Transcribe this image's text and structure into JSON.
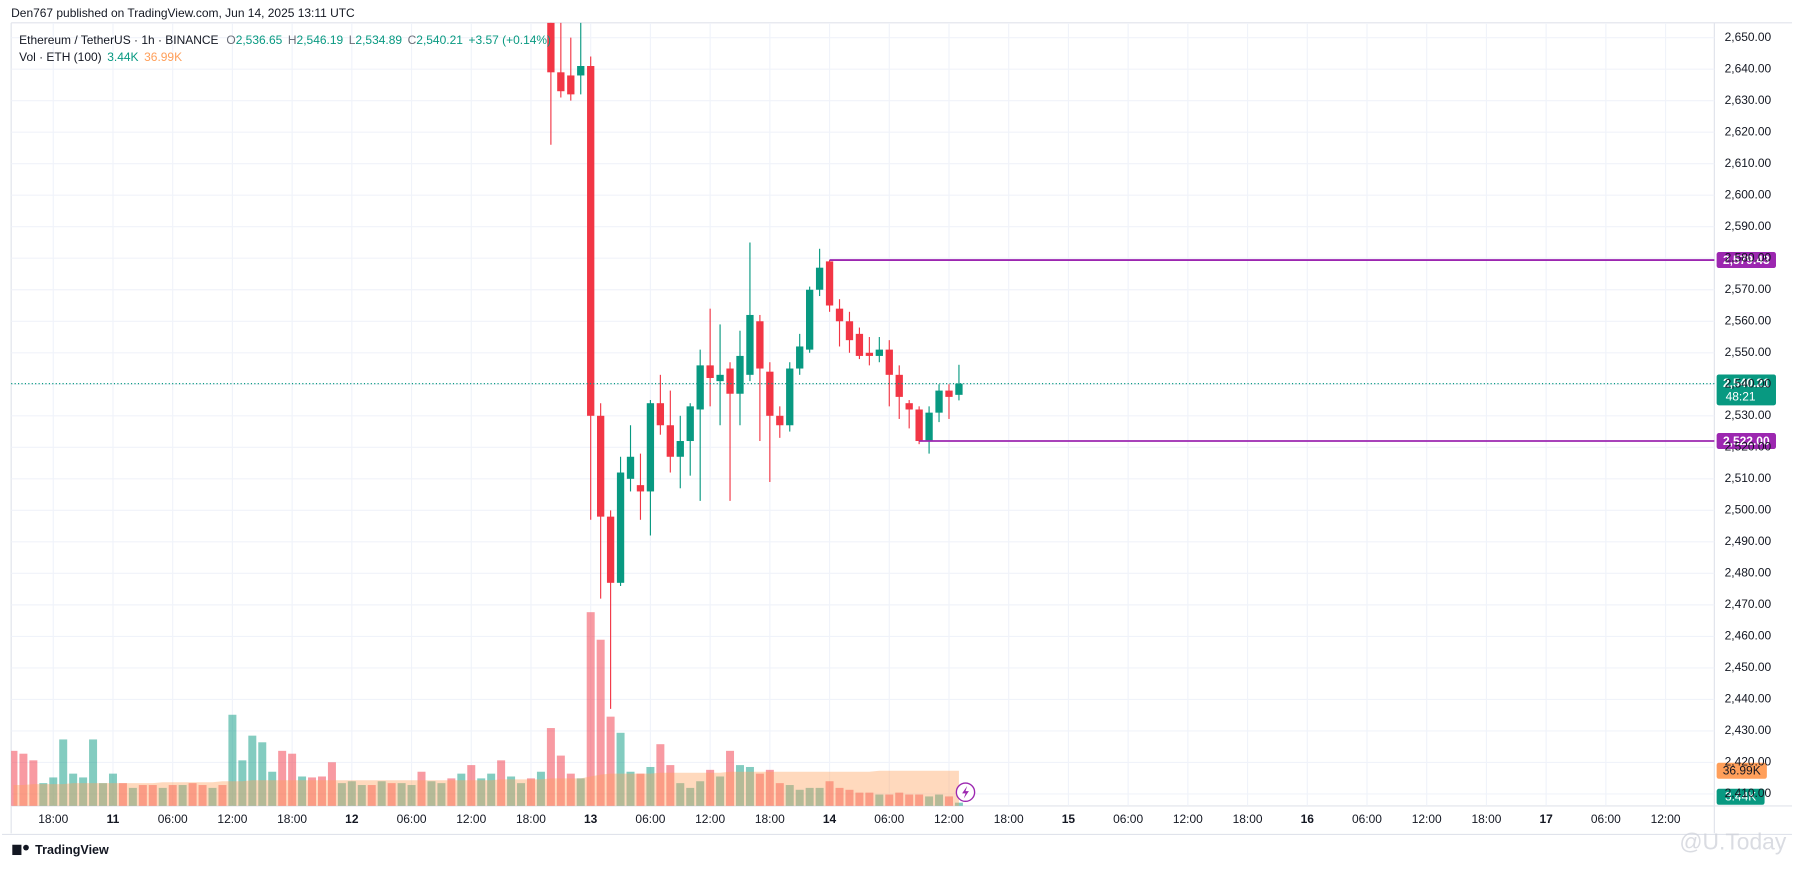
{
  "chart_data": {
    "type": "candlestick",
    "publisher_line": "Den767 published on TradingView.com, Jun 14, 2025 13:11 UTC",
    "symbol": "Ethereum / TetherUS · 1h · BINANCE",
    "ohlc": [
      {
        "prefix": "O",
        "value": "2,536.65"
      },
      {
        "prefix": "H",
        "value": "2,546.19"
      },
      {
        "prefix": "L",
        "value": "2,534.89"
      },
      {
        "prefix": "C",
        "value": "2,540.21"
      }
    ],
    "change": "+3.57 (+0.14%)",
    "volume_legend": "Vol · ETH (100)",
    "volume_last": {
      "value": 3.44,
      "label": "3.44K"
    },
    "volume_ma_last": {
      "value": 36.99,
      "label": "36.99K"
    },
    "up_color": "#089981",
    "down_color": "#f23645",
    "ma_color": "#ff9f5a",
    "level_color": "#9c27b0",
    "x": [
      54,
      55,
      56,
      57,
      58,
      59,
      60,
      61,
      62,
      63,
      64,
      65,
      66,
      67,
      68,
      69,
      70,
      71,
      72,
      73,
      74,
      75,
      76,
      77,
      78,
      79,
      80,
      81,
      82,
      83,
      84,
      85,
      86,
      87,
      88,
      89,
      90,
      91,
      92,
      93,
      94,
      95
    ],
    "open": [
      2660,
      2639,
      2638,
      2638,
      2641,
      2530,
      2498,
      2477,
      2510,
      2508,
      2506,
      2534,
      2527,
      2517,
      2522,
      2532,
      2546,
      2541,
      2545,
      2537,
      2543,
      2560,
      2544,
      2530,
      2527,
      2545,
      2551,
      2570,
      2579,
      2564,
      2560,
      2556,
      2550,
      2549,
      2551,
      2543,
      2534,
      2532,
      2522,
      2531,
      2538,
      2536.65
    ],
    "high": [
      2665,
      2655,
      2650,
      2655,
      2644,
      2534,
      2500,
      2517,
      2527,
      2518,
      2535,
      2543,
      2538,
      2530,
      2534,
      2551,
      2564,
      2559,
      2547,
      2557,
      2585,
      2562,
      2547,
      2533,
      2547,
      2556,
      2571,
      2583,
      2579.43,
      2567,
      2563,
      2558,
      2555,
      2555,
      2554,
      2546,
      2535,
      2533,
      2533,
      2540,
      2540,
      2546.19
    ],
    "low": [
      2616,
      2631,
      2630,
      2632,
      2497,
      2472,
      2437,
      2476,
      2506,
      2497,
      2492,
      2524,
      2512,
      2507,
      2511,
      2503,
      2533,
      2527,
      2503,
      2527,
      2541,
      2522,
      2509,
      2523,
      2525,
      2543,
      2550,
      2568,
      2563,
      2552,
      2550,
      2548,
      2546,
      2547,
      2533,
      2529,
      2526,
      2521,
      2518,
      2528,
      2529,
      2534.89
    ],
    "close": [
      2639,
      2633,
      2632,
      2641,
      2530,
      2498,
      2477,
      2512,
      2517,
      2506,
      2534,
      2527,
      2517,
      2522,
      2533,
      2546,
      2542,
      2543,
      2537,
      2549,
      2562,
      2545,
      2530,
      2527,
      2545,
      2552,
      2570,
      2577,
      2565,
      2560,
      2554,
      2549,
      2549,
      2551,
      2543,
      2536,
      2532,
      2522,
      2531,
      2538,
      2536,
      2540.21
    ],
    "volume": {
      "x": [
        0,
        1,
        2,
        3,
        4,
        5,
        6,
        7,
        8,
        9,
        10,
        11,
        12,
        13,
        14,
        15,
        16,
        17,
        18,
        19,
        20,
        21,
        22,
        23,
        24,
        25,
        26,
        27,
        28,
        29,
        30,
        31,
        32,
        33,
        34,
        35,
        36,
        37,
        38,
        39,
        40,
        41,
        42,
        43,
        44,
        45,
        46,
        47,
        48,
        49,
        50,
        51,
        52,
        53,
        54,
        55,
        56,
        57,
        58,
        59,
        60,
        61,
        62,
        63,
        64,
        65,
        66,
        67,
        68,
        69,
        70,
        71,
        72,
        73,
        74,
        75,
        76,
        77,
        78,
        79,
        80,
        81,
        82,
        83,
        84,
        85,
        86,
        87,
        88,
        89,
        90,
        91,
        92,
        93,
        94,
        95
      ],
      "values": [
        58,
        55,
        48,
        24,
        30,
        70,
        34,
        30,
        70,
        24,
        34,
        24,
        19,
        22,
        22,
        19,
        22,
        22,
        24,
        22,
        19,
        22,
        96,
        48,
        74,
        67,
        36,
        58,
        55,
        31,
        30,
        31,
        46,
        24,
        26,
        22,
        22,
        26,
        24,
        24,
        22,
        36,
        26,
        24,
        29,
        34,
        43,
        29,
        34,
        48,
        31,
        24,
        29,
        36,
        82,
        53,
        34,
        29,
        204,
        175,
        94,
        77,
        36,
        34,
        41,
        65,
        43,
        24,
        19,
        26,
        38,
        31,
        58,
        43,
        41,
        34,
        38,
        24,
        22,
        17,
        19,
        19,
        26,
        19,
        17,
        14,
        14,
        12,
        12,
        14,
        12,
        12,
        10,
        12,
        10,
        3.44
      ],
      "up": [
        false,
        false,
        false,
        true,
        true,
        true,
        true,
        true,
        true,
        true,
        true,
        false,
        true,
        false,
        false,
        true,
        false,
        true,
        false,
        false,
        true,
        false,
        true,
        true,
        true,
        true,
        true,
        false,
        false,
        true,
        false,
        false,
        false,
        true,
        true,
        true,
        false,
        true,
        false,
        true,
        true,
        false,
        true,
        true,
        false,
        true,
        false,
        true,
        true,
        false,
        true,
        true,
        false,
        true,
        false,
        false,
        false,
        true,
        false,
        false,
        false,
        true,
        true,
        false,
        true,
        false,
        false,
        true,
        true,
        true,
        false,
        true,
        false,
        true,
        true,
        false,
        false,
        false,
        true,
        true,
        true,
        true,
        false,
        false,
        false,
        false,
        false,
        true,
        false,
        false,
        false,
        false,
        true,
        true,
        false,
        true
      ],
      "ma": [
        22,
        22,
        23,
        23,
        23,
        23,
        24,
        24,
        24,
        24,
        24,
        24,
        24,
        24,
        24,
        25,
        25,
        25,
        25,
        25,
        25,
        26,
        26,
        26,
        27,
        27,
        27,
        27,
        27,
        27,
        27,
        27,
        27,
        27,
        27,
        27,
        27,
        27,
        27,
        27,
        27,
        27,
        27,
        27,
        27,
        27,
        27,
        27,
        27,
        28,
        28,
        28,
        28,
        28,
        29,
        29,
        29,
        29,
        31,
        33,
        34,
        34,
        34,
        34,
        34,
        35,
        35,
        35,
        35,
        35,
        35,
        35,
        36,
        36,
        36,
        36,
        36,
        36,
        36,
        36,
        36,
        36,
        36,
        36,
        36,
        36,
        36,
        37,
        37,
        37,
        37,
        37,
        37,
        37,
        37,
        36.99
      ]
    },
    "vlim": [
      0,
      250
    ],
    "xlim": [
      -0.23,
      170.9
    ],
    "xticks": [
      {
        "value": 4,
        "label": "18:00"
      },
      {
        "value": 10,
        "label": "11"
      },
      {
        "value": 16,
        "label": "06:00"
      },
      {
        "value": 22,
        "label": "12:00"
      },
      {
        "value": 28,
        "label": "18:00"
      },
      {
        "value": 34,
        "label": "12"
      },
      {
        "value": 40,
        "label": "06:00"
      },
      {
        "value": 46,
        "label": "12:00"
      },
      {
        "value": 52,
        "label": "18:00"
      },
      {
        "value": 58,
        "label": "13"
      },
      {
        "value": 64,
        "label": "06:00"
      },
      {
        "value": 70,
        "label": "12:00"
      },
      {
        "value": 76,
        "label": "18:00"
      },
      {
        "value": 82,
        "label": "14"
      },
      {
        "value": 88,
        "label": "06:00"
      },
      {
        "value": 94,
        "label": "12:00"
      },
      {
        "value": 100,
        "label": "18:00"
      },
      {
        "value": 106,
        "label": "15"
      },
      {
        "value": 112,
        "label": "06:00"
      },
      {
        "value": 118,
        "label": "12:00"
      },
      {
        "value": 124,
        "label": "18:00"
      },
      {
        "value": 130,
        "label": "16"
      },
      {
        "value": 136,
        "label": "06:00"
      },
      {
        "value": 142,
        "label": "12:00"
      },
      {
        "value": 148,
        "label": "18:00"
      },
      {
        "value": 154,
        "label": "17"
      },
      {
        "value": 160,
        "label": "06:00"
      },
      {
        "value": 166,
        "label": "12:00"
      }
    ],
    "ylim": [
      2406.2,
      2654.7
    ],
    "yticks": [
      {
        "value": 2410,
        "label": "2,410.00"
      },
      {
        "value": 2420,
        "label": "2,420.00"
      },
      {
        "value": 2430,
        "label": "2,430.00"
      },
      {
        "value": 2440,
        "label": "2,440.00"
      },
      {
        "value": 2450,
        "label": "2,450.00"
      },
      {
        "value": 2460,
        "label": "2,460.00"
      },
      {
        "value": 2470,
        "label": "2,470.00"
      },
      {
        "value": 2480,
        "label": "2,480.00"
      },
      {
        "value": 2490,
        "label": "2,490.00"
      },
      {
        "value": 2500,
        "label": "2,500.00"
      },
      {
        "value": 2510,
        "label": "2,510.00"
      },
      {
        "value": 2520,
        "label": "2,520.00"
      },
      {
        "value": 2530,
        "label": "2,530.00"
      },
      {
        "value": 2540,
        "label": "2,540.00"
      },
      {
        "value": 2550,
        "label": "2,550.00"
      },
      {
        "value": 2560,
        "label": "2,560.00"
      },
      {
        "value": 2570,
        "label": "2,570.00"
      },
      {
        "value": 2580,
        "label": "2,580.00"
      },
      {
        "value": 2590,
        "label": "2,590.00"
      },
      {
        "value": 2600,
        "label": "2,600.00"
      },
      {
        "value": 2610,
        "label": "2,610.00"
      },
      {
        "value": 2620,
        "label": "2,620.00"
      },
      {
        "value": 2630,
        "label": "2,630.00"
      },
      {
        "value": 2640,
        "label": "2,640.00"
      },
      {
        "value": 2650,
        "label": "2,650.00"
      }
    ],
    "grid": true,
    "levels": [
      {
        "value": 2579.43,
        "label": "2,579.43",
        "from_x": 82
      },
      {
        "value": 2522,
        "label": "2,522.00",
        "from_x": 91
      }
    ],
    "last_price": {
      "value": 2540.21,
      "label": "2,540.21",
      "countdown": "48:21"
    },
    "footer": "TradingView",
    "watermark": "@U.Today"
  }
}
